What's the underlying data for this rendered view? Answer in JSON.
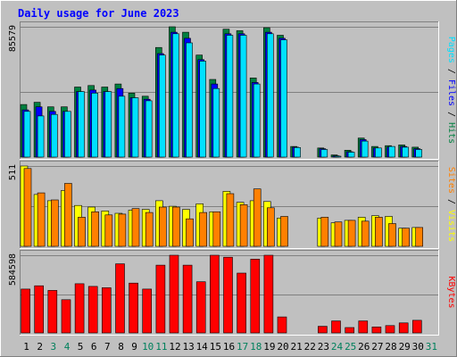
{
  "chart_data": {
    "type": "bar",
    "title": "Daily usage for June 2023",
    "categories": [
      "1",
      "2",
      "3",
      "4",
      "5",
      "6",
      "7",
      "8",
      "9",
      "10",
      "11",
      "12",
      "13",
      "14",
      "15",
      "16",
      "17",
      "18",
      "19",
      "20",
      "21",
      "22",
      "23",
      "24",
      "25",
      "26",
      "27",
      "28",
      "29",
      "30",
      "31"
    ],
    "weekend_days": [
      "3",
      "4",
      "10",
      "11",
      "17",
      "18",
      "24",
      "25",
      "31"
    ],
    "panels": [
      {
        "id": "top",
        "ymax_label": "85579",
        "ymax": 85579,
        "right_label_parts": [
          "Pages",
          " / ",
          "Files",
          " / ",
          "Hits"
        ],
        "series": [
          {
            "name": "Hits",
            "color": "#008040",
            "values": [
              34500,
              36000,
              33000,
              33000,
              46000,
              47000,
              46000,
              48000,
              42000,
              40000,
              72000,
              85579,
              82000,
              67000,
              51000,
              84000,
              83000,
              52000,
              85000,
              80000,
              7000,
              0,
              6000,
              1400,
              4500,
              12500,
              7000,
              7500,
              8000,
              6500,
              0
            ]
          },
          {
            "name": "Files",
            "color": "#0000FF",
            "values": [
              31000,
              33000,
              30000,
              30000,
              43000,
              44000,
              43000,
              45000,
              39000,
              38000,
              68000,
              82000,
              78000,
              64000,
              48000,
              81000,
              81000,
              49000,
              82000,
              78000,
              6500,
              0,
              5500,
              800,
              3500,
              11500,
              6000,
              6500,
              7000,
              5500,
              0
            ]
          },
          {
            "name": "Pages",
            "color": "#00E0FF",
            "values": [
              30000,
              27000,
              28000,
              30000,
              43000,
              42000,
              43000,
              40000,
              39000,
              37000,
              67000,
              81000,
              75000,
              63000,
              45000,
              80000,
              80000,
              48000,
              81000,
              77000,
              6300,
              0,
              5000,
              600,
              3200,
              10500,
              6000,
              7000,
              6500,
              5000,
              0
            ]
          }
        ]
      },
      {
        "id": "middle",
        "ymax_label": "511",
        "ymax": 511,
        "right_label_parts": [
          "Sites",
          " / ",
          "Visits"
        ],
        "series": [
          {
            "name": "Visits",
            "color": "#FFFF00",
            "values": [
              511,
              330,
              290,
              355,
              260,
              250,
              225,
              210,
              230,
              235,
              290,
              255,
              235,
              270,
              220,
              350,
              280,
              290,
              285,
              180,
              0,
              0,
              180,
              150,
              165,
              185,
              195,
              190,
              115,
              120,
              0
            ]
          },
          {
            "name": "Sites",
            "color": "#FF8000",
            "values": [
              495,
              340,
              295,
              400,
              185,
              220,
              200,
              205,
              240,
              215,
              250,
              250,
              175,
              215,
              220,
              335,
              265,
              365,
              245,
              190,
              0,
              0,
              185,
              155,
              165,
              160,
              185,
              145,
              115,
              120,
              0
            ]
          }
        ]
      },
      {
        "id": "bottom",
        "ymax_label": "584598",
        "ymax": 584598,
        "right_label_parts": [
          "KBytes"
        ],
        "series": [
          {
            "name": "KBytes",
            "color": "#FF0000",
            "values": [
              330000,
              355000,
              320000,
              250000,
              370000,
              350000,
              340000,
              520000,
              375000,
              330000,
              510000,
              584598,
              510000,
              385000,
              584598,
              570000,
              450000,
              555000,
              584598,
              120000,
              0,
              0,
              50000,
              90000,
              40000,
              90000,
              45000,
              55000,
              75000,
              95000,
              0
            ]
          }
        ]
      }
    ],
    "colors": {
      "background": "#C0C0C0",
      "border_light": "#FFFFFF",
      "border_dark": "#808080",
      "title": "#0000FF",
      "weekday_label": "#000000",
      "weekend_label": "#00805C",
      "bar_outline": "#000000",
      "gridline": "#808080"
    }
  }
}
